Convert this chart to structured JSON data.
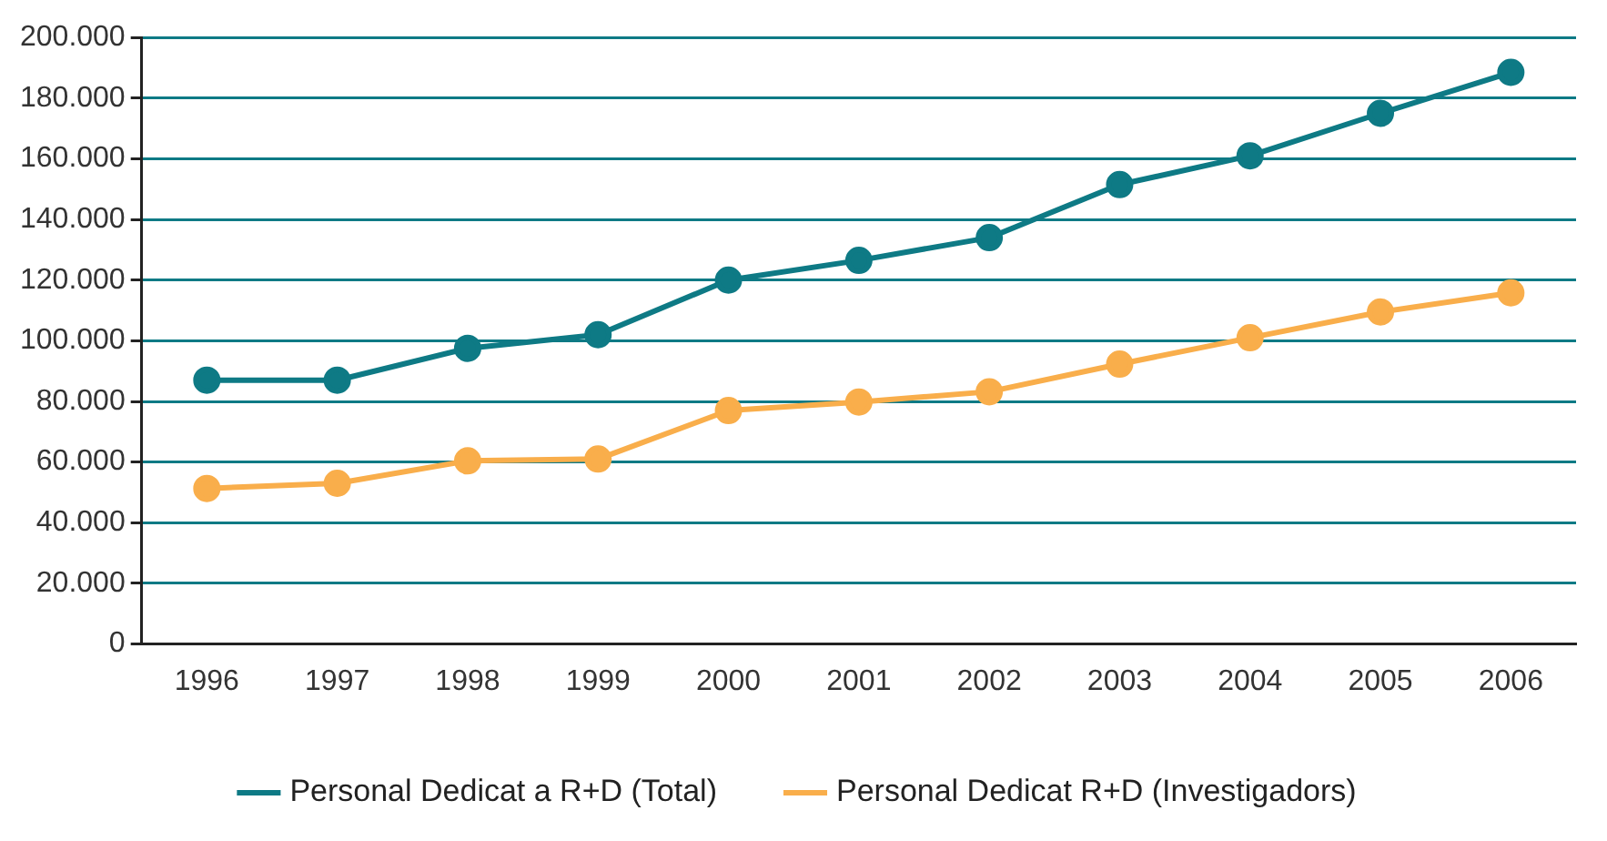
{
  "chart_data": {
    "type": "line",
    "categories": [
      "1996",
      "1997",
      "1998",
      "1999",
      "2000",
      "2001",
      "2002",
      "2003",
      "2004",
      "2005",
      "2006"
    ],
    "series": [
      {
        "name": "Personal Dedicat a R+D (Total)",
        "color": "#0e7a85",
        "values": [
          87000,
          87000,
          97500,
          102000,
          120000,
          126500,
          134000,
          151500,
          161000,
          175000,
          188500
        ]
      },
      {
        "name": "Personal Dedicat R+D (Investigadors)",
        "color": "#f9ae4b",
        "values": [
          51300,
          53000,
          60400,
          61000,
          77000,
          79800,
          83200,
          92300,
          101000,
          109500,
          115800
        ]
      }
    ],
    "ylim": [
      0,
      200000
    ],
    "yticks": [
      {
        "value": 0,
        "label": "0"
      },
      {
        "value": 20000,
        "label": "20.000"
      },
      {
        "value": 40000,
        "label": "40.000"
      },
      {
        "value": 60000,
        "label": "60.000"
      },
      {
        "value": 80000,
        "label": "80.000"
      },
      {
        "value": 100000,
        "label": "100.000"
      },
      {
        "value": 120000,
        "label": "120.000"
      },
      {
        "value": 140000,
        "label": "140.000"
      },
      {
        "value": 160000,
        "label": "160.000"
      },
      {
        "value": 180000,
        "label": "180.000"
      },
      {
        "value": 200000,
        "label": "200.000"
      }
    ],
    "grid": "y",
    "legend": "bottom",
    "marker": "circle",
    "line_style": "solid"
  }
}
